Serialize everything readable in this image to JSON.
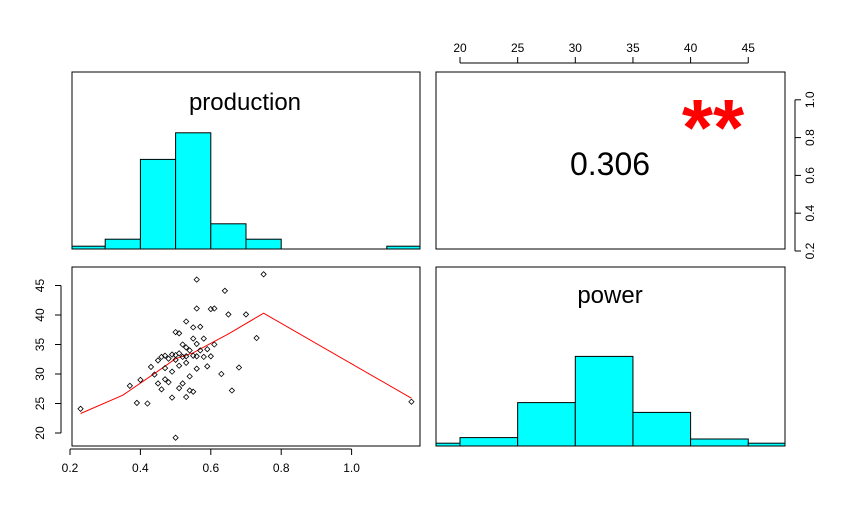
{
  "chart_data": {
    "type": "scatter",
    "variables": [
      "production",
      "power"
    ],
    "correlation": {
      "value": "0.306",
      "stars": "**"
    },
    "production_hist": {
      "breaks": [
        0.2,
        0.3,
        0.4,
        0.5,
        0.6,
        0.7,
        0.8,
        0.9,
        1.0,
        1.1,
        1.2
      ],
      "heights": [
        0.02,
        0.07,
        0.64,
        0.83,
        0.18,
        0.07,
        0.0,
        0.0,
        0.0,
        0.02
      ]
    },
    "power_hist": {
      "breaks": [
        20,
        25,
        30,
        35,
        40,
        45,
        50
      ],
      "heights": [
        0.06,
        0.31,
        0.64,
        0.24,
        0.05,
        0.02
      ]
    },
    "power_hist_left_stub": 0.02,
    "x_ticks": [
      0.2,
      0.4,
      0.6,
      0.8,
      1.0
    ],
    "x_tick_labels": [
      "0.2",
      "0.4",
      "0.6",
      "0.8",
      "1.0"
    ],
    "y_ticks": [
      20,
      25,
      30,
      35,
      40,
      45
    ],
    "y_tick_labels": [
      "20",
      "25",
      "30",
      "35",
      "40",
      "45"
    ],
    "top_ticks": [
      20,
      25,
      30,
      35,
      40,
      45
    ],
    "top_tick_labels": [
      "20",
      "25",
      "30",
      "35",
      "40",
      "45"
    ],
    "right_ticks": [
      0.2,
      0.4,
      0.6,
      0.8,
      1.0
    ],
    "right_tick_labels": [
      "0.2",
      "0.4",
      "0.6",
      "0.8",
      "1.0"
    ],
    "scatter_points": [
      [
        0.23,
        24.1
      ],
      [
        0.37,
        28.0
      ],
      [
        0.39,
        25.1
      ],
      [
        0.4,
        29.0
      ],
      [
        0.42,
        25.0
      ],
      [
        0.43,
        31.2
      ],
      [
        0.44,
        29.9
      ],
      [
        0.45,
        32.3
      ],
      [
        0.45,
        28.4
      ],
      [
        0.46,
        32.9
      ],
      [
        0.46,
        27.4
      ],
      [
        0.47,
        33.1
      ],
      [
        0.47,
        31.0
      ],
      [
        0.47,
        29.1
      ],
      [
        0.48,
        32.6
      ],
      [
        0.48,
        28.6
      ],
      [
        0.49,
        33.3
      ],
      [
        0.49,
        30.4
      ],
      [
        0.49,
        26.0
      ],
      [
        0.5,
        37.1
      ],
      [
        0.5,
        33.2
      ],
      [
        0.5,
        32.4
      ],
      [
        0.5,
        19.2
      ],
      [
        0.51,
        36.9
      ],
      [
        0.51,
        33.5
      ],
      [
        0.51,
        31.4
      ],
      [
        0.51,
        27.6
      ],
      [
        0.52,
        35.0
      ],
      [
        0.52,
        32.9
      ],
      [
        0.52,
        28.4
      ],
      [
        0.53,
        38.9
      ],
      [
        0.53,
        34.5
      ],
      [
        0.53,
        33.0
      ],
      [
        0.53,
        31.9
      ],
      [
        0.53,
        26.1
      ],
      [
        0.54,
        34.0
      ],
      [
        0.54,
        29.6
      ],
      [
        0.54,
        27.2
      ],
      [
        0.55,
        37.9
      ],
      [
        0.55,
        36.0
      ],
      [
        0.55,
        33.1
      ],
      [
        0.55,
        27.0
      ],
      [
        0.56,
        41.1
      ],
      [
        0.56,
        35.1
      ],
      [
        0.56,
        33.0
      ],
      [
        0.56,
        30.9
      ],
      [
        0.56,
        46.0
      ],
      [
        0.57,
        38.0
      ],
      [
        0.57,
        34.0
      ],
      [
        0.58,
        36.0
      ],
      [
        0.58,
        32.9
      ],
      [
        0.59,
        34.2
      ],
      [
        0.59,
        31.3
      ],
      [
        0.6,
        41.0
      ],
      [
        0.6,
        33.0
      ],
      [
        0.61,
        35.0
      ],
      [
        0.61,
        41.1
      ],
      [
        0.63,
        30.0
      ],
      [
        0.64,
        44.1
      ],
      [
        0.65,
        40.1
      ],
      [
        0.66,
        27.2
      ],
      [
        0.68,
        31.1
      ],
      [
        0.7,
        40.1
      ],
      [
        0.73,
        36.1
      ],
      [
        0.75,
        46.9
      ],
      [
        1.17,
        25.3
      ]
    ],
    "smooth_line": [
      [
        0.23,
        23.3
      ],
      [
        0.35,
        26.4
      ],
      [
        0.45,
        30.5
      ],
      [
        0.5,
        32.6
      ],
      [
        0.55,
        33.6
      ],
      [
        0.6,
        35.2
      ],
      [
        0.65,
        36.8
      ],
      [
        0.75,
        40.3
      ],
      [
        1.17,
        25.9
      ]
    ],
    "colors": {
      "hist_fill": "#00ffff",
      "smooth": "#ff0000",
      "stars": "#ff0000"
    }
  }
}
